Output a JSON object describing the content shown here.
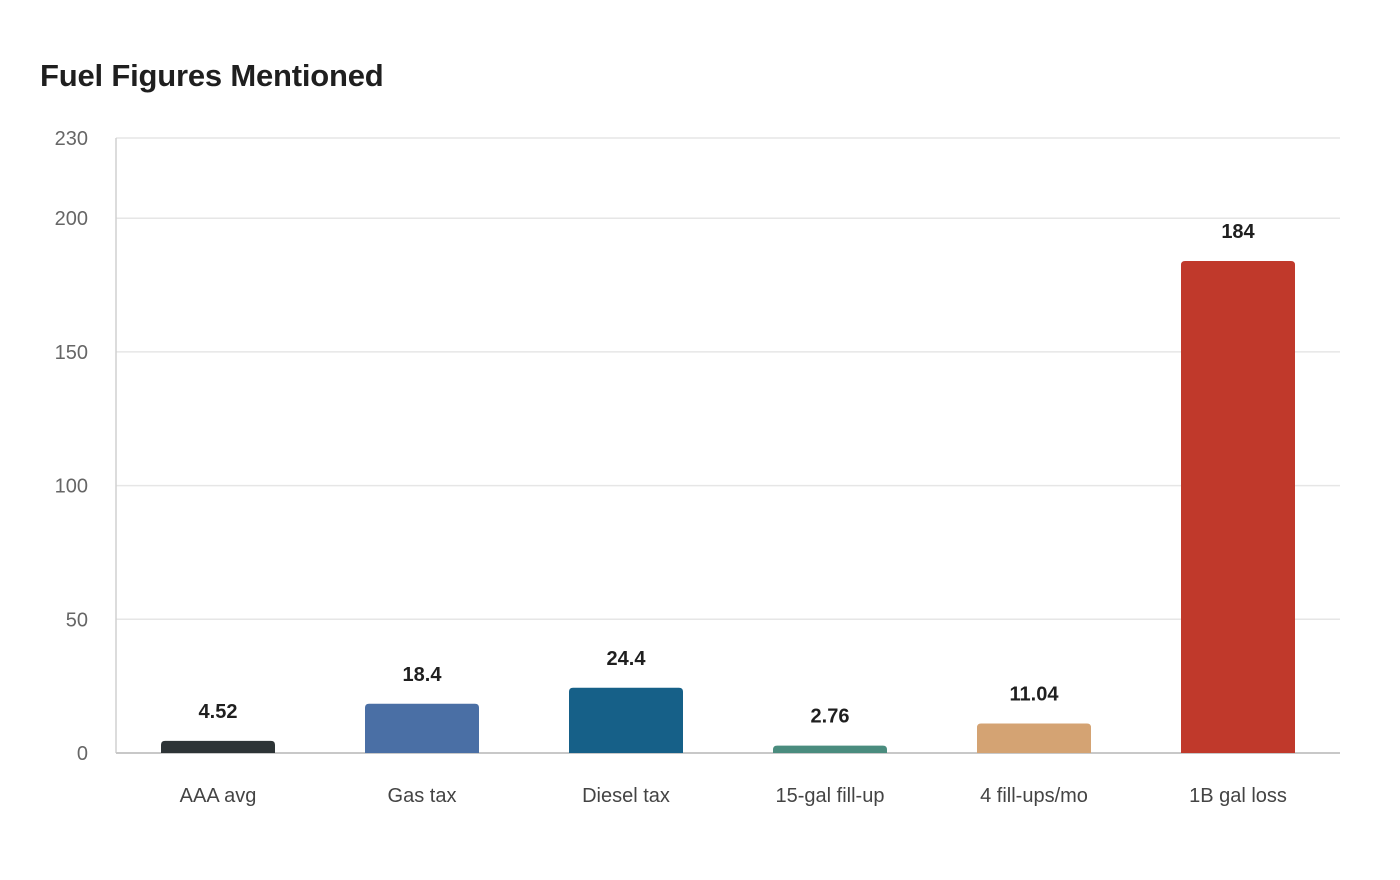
{
  "chart_data": {
    "type": "bar",
    "title": "Fuel Figures Mentioned",
    "xlabel": "",
    "ylabel": "",
    "categories": [
      "AAA avg",
      "Gas tax",
      "Diesel tax",
      "15-gal fill-up",
      "4 fill-ups/mo",
      "1B gal loss"
    ],
    "values": [
      4.52,
      18.4,
      24.4,
      2.76,
      11.04,
      184
    ],
    "value_labels": [
      "4.52",
      "18.4",
      "24.4",
      "2.76",
      "11.04",
      "184"
    ],
    "colors": [
      "#2d3436",
      "#4a6fa5",
      "#166088",
      "#4a8c7e",
      "#d4a373",
      "#c0392b"
    ],
    "ylim": [
      0,
      230
    ],
    "yticks": [
      0,
      50,
      100,
      150,
      200,
      230
    ],
    "grid": true,
    "legend": "none"
  }
}
